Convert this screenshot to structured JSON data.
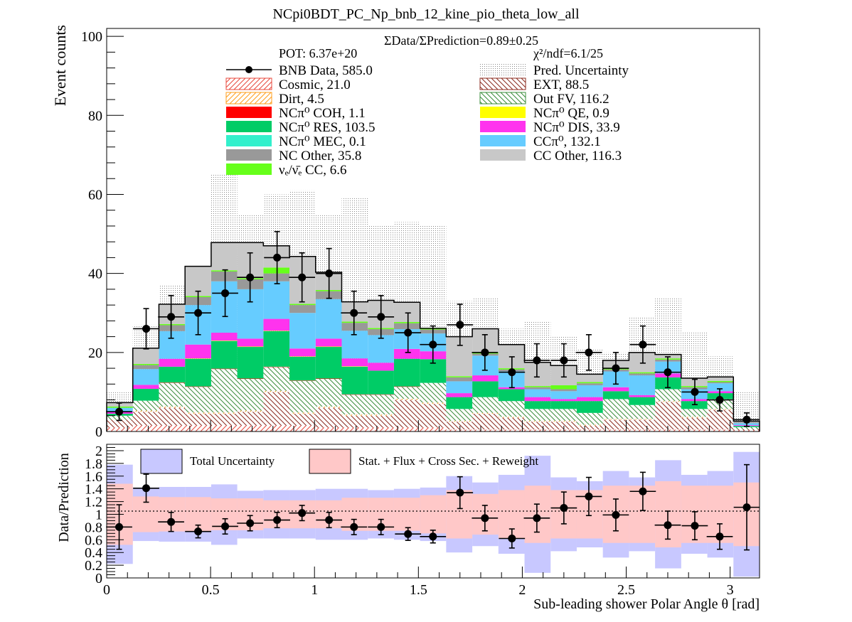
{
  "chart_data": [
    {
      "type": "stacked-histogram",
      "title": "NCpi0BDT_PC_Np_bnb_12_kine_pio_theta_low_all",
      "ylabel": "Event counts",
      "xlim": [
        0,
        3.14159
      ],
      "ylim": [
        0,
        102
      ],
      "yticks": [
        0,
        20,
        40,
        60,
        80,
        100
      ],
      "ratio_text": "ΣData/ΣPrediction=0.89±0.25",
      "pot_text": "POT: 6.37e+20",
      "chi2_text": "χ²/ndf=6.1/25",
      "bin_edges": [
        0,
        0.1257,
        0.2513,
        0.377,
        0.5027,
        0.6283,
        0.754,
        0.8796,
        1.0053,
        1.131,
        1.2566,
        1.3823,
        1.508,
        1.6336,
        1.7593,
        1.885,
        2.0106,
        2.1363,
        2.2619,
        2.3876,
        2.5133,
        2.6389,
        2.7646,
        2.8903,
        3.0159,
        3.1416
      ],
      "series": [
        {
          "name": "Cosmic, 21.0",
          "color": "#e8483c",
          "pattern": "hatch-forward",
          "values": [
            1,
            1.5,
            1.5,
            1.5,
            1.5,
            1.5,
            1.5,
            1.5,
            1,
            1,
            1,
            1,
            1,
            0.5,
            0.5,
            0.5,
            0.5,
            0.5,
            0.5,
            0.5,
            0.5,
            0.5,
            0.5,
            0.5,
            0.3
          ]
        },
        {
          "name": "EXT, 88.5",
          "color": "#8b2a1e",
          "pattern": "hatch-back",
          "values": [
            2,
            3.5,
            4.5,
            3,
            3,
            3.5,
            8.5,
            3,
            5,
            3,
            3,
            7,
            6,
            2,
            4,
            3,
            2,
            2,
            1,
            2.5,
            2.5,
            7,
            3,
            5,
            0.3
          ]
        },
        {
          "name": "Dirt, 4.5",
          "color": "#ff9c1a",
          "pattern": "hatch-forward",
          "values": [
            0,
            0.3,
            0.3,
            0.3,
            0.3,
            0.3,
            0.3,
            0.3,
            0.3,
            0.3,
            0.3,
            0.3,
            0.3,
            0.2,
            0.2,
            0.2,
            0.2,
            0.2,
            0.2,
            0.2,
            0.2,
            0.2,
            0.2,
            0.2,
            0
          ]
        },
        {
          "name": "Out FV, 116.2",
          "color": "#3a8c3a",
          "pattern": "hatch-back",
          "values": [
            1,
            2.5,
            6,
            6.5,
            11,
            8,
            6,
            8,
            7,
            5,
            5,
            3,
            5,
            3,
            4,
            4,
            3,
            3,
            3,
            5,
            3.5,
            3,
            2,
            2.5,
            0.5
          ]
        },
        {
          "name": "NCπ⁰ COH,  1.1",
          "color": "#ff0000",
          "values": [
            0,
            0,
            0.1,
            0.1,
            0.1,
            0.1,
            0.1,
            0.1,
            0.1,
            0.1,
            0.1,
            0.1,
            0,
            0,
            0,
            0,
            0,
            0,
            0,
            0,
            0,
            0,
            0,
            0,
            0
          ]
        },
        {
          "name": "NCπ⁰ RES,  103.5",
          "color": "#00cc66",
          "values": [
            0.5,
            3,
            4,
            7,
            7,
            8,
            9,
            6,
            8,
            7,
            6,
            7,
            6,
            3,
            4,
            3,
            2,
            2,
            3,
            2,
            2,
            3,
            2,
            1.5,
            0.3
          ]
        },
        {
          "name": "NCπ⁰ MEC,  0.1",
          "color": "#33f0cc",
          "values": [
            0,
            0,
            0,
            0,
            0,
            0,
            0,
            0,
            0,
            0,
            0,
            0,
            0,
            0,
            0,
            0,
            0,
            0,
            0,
            0,
            0,
            0,
            0,
            0,
            0
          ]
        },
        {
          "name": "NCπ⁰ QE,  0.9",
          "color": "#ffff00",
          "values": [
            0,
            0,
            0,
            0.1,
            0.1,
            0.1,
            0.1,
            0.1,
            0.1,
            0.1,
            0,
            0,
            0,
            0,
            0,
            0,
            0,
            0,
            0,
            0,
            0,
            0,
            0,
            0,
            0
          ]
        },
        {
          "name": "NCπ⁰ DIS,  33.9",
          "color": "#ff33ee",
          "values": [
            0.5,
            1,
            2,
            3.5,
            2,
            2,
            3,
            2,
            2,
            2,
            2,
            2.5,
            2,
            1,
            1.5,
            0.5,
            1,
            0.5,
            1,
            1,
            0.5,
            1,
            0.5,
            0.5,
            0.2
          ]
        },
        {
          "name": "CCπ⁰, 132.1",
          "color": "#66ccff",
          "values": [
            1,
            4,
            7,
            10,
            13,
            12.5,
            9.5,
            9,
            10,
            7,
            7,
            5,
            4.5,
            3,
            5,
            4,
            2,
            2,
            3,
            4,
            5,
            3,
            2.5,
            2,
            0.5
          ]
        },
        {
          "name": "NC Other, 35.8",
          "color": "#999999",
          "values": [
            0,
            1,
            1.5,
            2,
            2.5,
            2.5,
            2,
            2,
            2,
            2,
            1.5,
            1.5,
            1,
            1,
            0.5,
            0.5,
            0.5,
            0.5,
            0.5,
            0.5,
            0.5,
            0.5,
            0.5,
            0.3,
            0.2
          ]
        },
        {
          "name": "νₑ/ν̄ₑ CC, 6.6",
          "color": "#66ff1a",
          "values": [
            0.3,
            0.3,
            0.3,
            0.3,
            0.3,
            0.3,
            1.5,
            0.3,
            0.3,
            0.3,
            0.3,
            0.3,
            0.3,
            0.3,
            0.3,
            0.3,
            0.3,
            1,
            0.3,
            0.3,
            0.3,
            0.3,
            0.3,
            0.3,
            0
          ]
        },
        {
          "name": "CC Other, 116.3",
          "color": "#c8c8c8",
          "values": [
            1,
            4,
            5,
            7.5,
            7,
            9,
            5.5,
            12,
            4.5,
            5,
            7,
            5,
            0,
            10,
            6,
            6,
            6,
            5,
            2,
            2,
            5,
            1,
            2,
            1,
            0.3
          ]
        }
      ],
      "uncertainty_top": [
        10,
        27,
        37,
        42,
        65,
        55,
        60,
        61,
        55,
        59,
        52,
        53,
        52,
        33,
        34,
        26,
        28,
        24,
        21,
        20,
        29,
        34,
        25,
        19,
        10
      ],
      "data": {
        "name": "BNB Data, 585.0",
        "x": [
          0.06,
          0.19,
          0.31,
          0.44,
          0.57,
          0.69,
          0.82,
          0.94,
          1.07,
          1.19,
          1.32,
          1.45,
          1.57,
          1.7,
          1.82,
          1.95,
          2.07,
          2.2,
          2.32,
          2.45,
          2.58,
          2.7,
          2.83,
          2.95,
          3.08
        ],
        "y": [
          5,
          26,
          29,
          30,
          35,
          39,
          44,
          39,
          40,
          30,
          29,
          25,
          22,
          27,
          20,
          15,
          18,
          18,
          20,
          16,
          22,
          15,
          10,
          8,
          3
        ],
        "yerr": [
          2.2,
          5.1,
          5.4,
          5.5,
          5.9,
          6.2,
          6.6,
          6.2,
          6.3,
          5.5,
          5.4,
          5.0,
          4.7,
          5.2,
          4.5,
          3.9,
          4.2,
          4.2,
          4.5,
          4.0,
          4.7,
          3.9,
          3.2,
          2.8,
          1.7
        ]
      },
      "legend": [
        {
          "label": "BNB Data, 585.0",
          "kind": "data"
        },
        {
          "label": "Pred. Uncertainty",
          "kind": "uncertainty"
        },
        {
          "label": "Cosmic, 21.0",
          "series": 0
        },
        {
          "label": "EXT, 88.5",
          "series": 1
        },
        {
          "label": "Dirt, 4.5",
          "series": 2
        },
        {
          "label": "Out FV, 116.2",
          "series": 3
        },
        {
          "label": "NCπ⁰ COH,  1.1",
          "series": 4
        },
        {
          "label": "NCπ⁰ QE,  0.9",
          "series": 7
        },
        {
          "label": "NCπ⁰ RES,  103.5",
          "series": 5
        },
        {
          "label": "NCπ⁰ DIS,  33.9",
          "series": 8
        },
        {
          "label": "NCπ⁰ MEC,  0.1",
          "series": 6
        },
        {
          "label": "CCπ⁰, 132.1",
          "series": 9
        },
        {
          "label": "NC Other, 35.8",
          "series": 10
        },
        {
          "label": "CC Other, 116.3",
          "series": 12
        },
        {
          "label": "νₑ/ν̄ₑ CC, 6.6",
          "series": 11
        }
      ]
    },
    {
      "type": "ratio",
      "ylabel": "Data/Prediction",
      "xlabel": "Sub-leading shower Polar Angle θ [rad]",
      "xlim": [
        0,
        3.14159
      ],
      "ylim": [
        0,
        2.1
      ],
      "yticks": [
        0,
        0.2,
        0.4,
        0.6,
        0.8,
        1,
        1.2,
        1.4,
        1.6,
        1.8,
        2
      ],
      "xticks": [
        0,
        0.5,
        1,
        1.5,
        2,
        2.5,
        3
      ],
      "legend": [
        {
          "label": "Total Uncertainty",
          "color": "#c8c8ff"
        },
        {
          "label": "Stat. + Flux + Cross Sec. + Reweight",
          "color": "#ffc8c8"
        }
      ],
      "total_unc_lo": [
        0.22,
        0.58,
        0.57,
        0.57,
        0.52,
        0.62,
        0.62,
        0.62,
        0.6,
        0.6,
        0.62,
        0.6,
        0.58,
        0.4,
        0.5,
        0.38,
        0.08,
        0.42,
        0.48,
        0.32,
        0.42,
        0.15,
        0.38,
        0.32,
        0.02
      ],
      "total_unc_hi": [
        1.78,
        1.42,
        1.43,
        1.43,
        1.47,
        1.37,
        1.38,
        1.38,
        1.4,
        1.4,
        1.38,
        1.4,
        1.42,
        1.6,
        1.5,
        1.62,
        1.92,
        1.58,
        1.52,
        1.68,
        1.58,
        1.85,
        1.62,
        1.68,
        1.98
      ],
      "stat_unc_lo": [
        0.52,
        0.72,
        0.73,
        0.73,
        0.75,
        0.75,
        0.78,
        0.78,
        0.78,
        0.74,
        0.74,
        0.74,
        0.7,
        0.62,
        0.68,
        0.62,
        0.55,
        0.62,
        0.62,
        0.55,
        0.55,
        0.48,
        0.55,
        0.55,
        0.5
      ],
      "stat_unc_hi": [
        1.48,
        1.28,
        1.27,
        1.27,
        1.25,
        1.25,
        1.22,
        1.22,
        1.22,
        1.26,
        1.26,
        1.26,
        1.3,
        1.38,
        1.32,
        1.38,
        1.45,
        1.38,
        1.38,
        1.45,
        1.45,
        1.52,
        1.45,
        1.45,
        1.5
      ],
      "ratio": [
        0.8,
        1.41,
        0.88,
        0.73,
        0.81,
        0.86,
        0.91,
        1.02,
        0.91,
        0.8,
        0.8,
        0.69,
        0.65,
        1.34,
        0.94,
        0.62,
        0.94,
        1.1,
        1.28,
        0.99,
        1.36,
        0.83,
        0.82,
        0.65,
        1.11
      ],
      "ratio_err": [
        0.35,
        0.22,
        0.15,
        0.1,
        0.12,
        0.12,
        0.12,
        0.12,
        0.12,
        0.12,
        0.12,
        0.1,
        0.1,
        0.25,
        0.2,
        0.15,
        0.22,
        0.25,
        0.3,
        0.25,
        0.3,
        0.22,
        0.22,
        0.2,
        0.67
      ]
    }
  ]
}
